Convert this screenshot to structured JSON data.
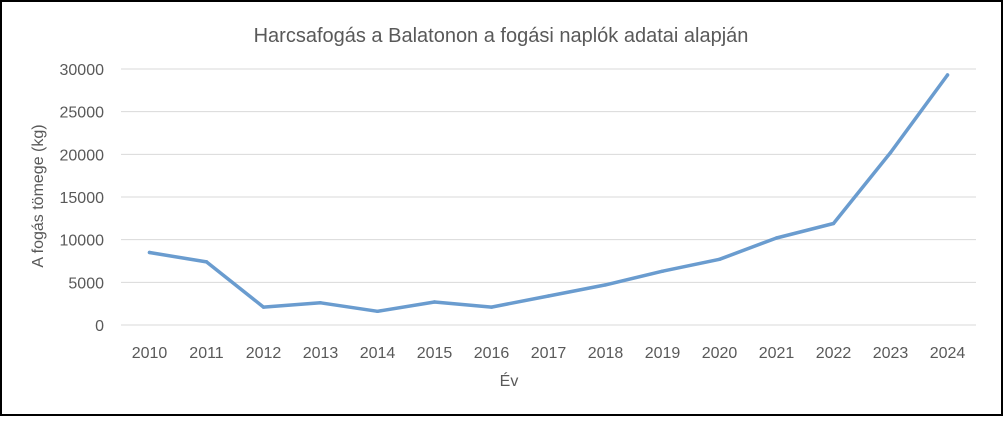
{
  "chart_data": {
    "type": "line",
    "title": "Harcsafogás a Balatonon a fogási naplók adatai alapján",
    "xlabel": "Év",
    "ylabel": "A fogás tömege (kg)",
    "categories": [
      "2010",
      "2011",
      "2012",
      "2013",
      "2014",
      "2015",
      "2016",
      "2017",
      "2018",
      "2019",
      "2020",
      "2021",
      "2022",
      "2023",
      "2024"
    ],
    "series": [
      {
        "color": "#6a9ccf",
        "values": [
          8500,
          7400,
          2100,
          2600,
          1600,
          2700,
          2100,
          3400,
          4700,
          6300,
          7700,
          10200,
          11900,
          20200,
          29300
        ]
      }
    ],
    "ylim": [
      0,
      30000
    ],
    "yticks": [
      0,
      5000,
      10000,
      15000,
      20000,
      25000,
      30000
    ],
    "grid": true,
    "legend": "none",
    "colors": {
      "border": "#000000",
      "gridline": "#d9d9d9",
      "text": "#595959"
    }
  }
}
